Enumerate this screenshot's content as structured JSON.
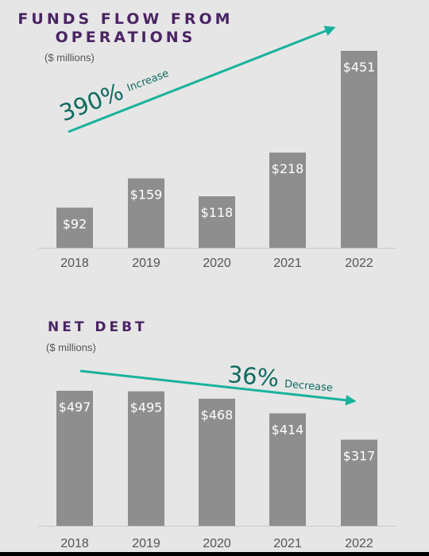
{
  "colors": {
    "bar": "#8e8e8e",
    "arrow": "#17b29c",
    "title": "#4a2463",
    "background": "#e6e6e6"
  },
  "chart_data": [
    {
      "type": "bar",
      "title": [
        "FUNDS FLOW FROM",
        "OPERATIONS"
      ],
      "subtitle": "($ millions)",
      "categories": [
        "2018",
        "2019",
        "2020",
        "2021",
        "2022"
      ],
      "values": [
        92,
        159,
        118,
        218,
        451
      ],
      "labels": [
        "$92",
        "$159",
        "$118",
        "$218",
        "$451"
      ],
      "ylim": [
        0,
        451
      ],
      "annotation": {
        "value": "390%",
        "text": "Increase",
        "direction": "up"
      }
    },
    {
      "type": "bar",
      "title": [
        "NET DEBT"
      ],
      "subtitle": "($ millions)",
      "categories": [
        "2018",
        "2019",
        "2020",
        "2021",
        "2022"
      ],
      "values": [
        497,
        495,
        468,
        414,
        317
      ],
      "labels": [
        "$497",
        "$495",
        "$468",
        "$414",
        "$317"
      ],
      "ylim": [
        0,
        497
      ],
      "annotation": {
        "value": "36%",
        "text": "Decrease",
        "direction": "down"
      }
    }
  ]
}
